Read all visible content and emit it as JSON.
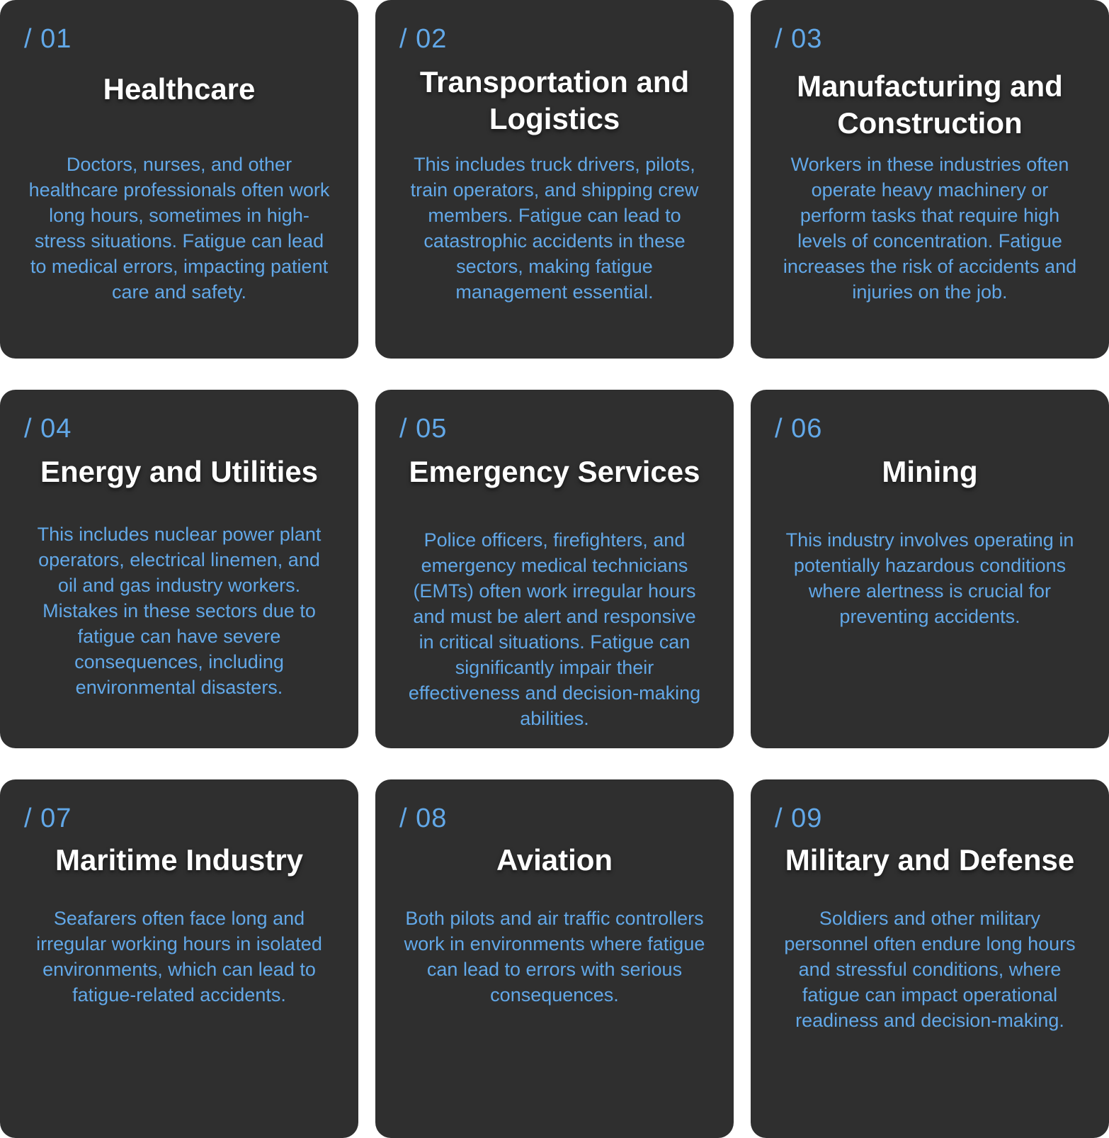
{
  "cards": [
    {
      "number": "/ 01",
      "title": "Healthcare",
      "description": "Doctors, nurses, and other healthcare professionals often work long hours, sometimes in high-stress situations. Fatigue can lead to medical errors, impacting patient care and safety."
    },
    {
      "number": "/ 02",
      "title": "Transportation and Logistics",
      "description": "This includes truck drivers, pilots, train operators, and shipping crew members. Fatigue can lead to catastrophic accidents in these sectors, making fatigue management essential."
    },
    {
      "number": "/ 03",
      "title": "Manufacturing and Construction",
      "description": "Workers in these industries often operate heavy machinery or perform tasks that require high levels of concentration. Fatigue increases the risk of accidents and injuries on the job."
    },
    {
      "number": "/ 04",
      "title": "Energy and Utilities",
      "description": "This includes nuclear power plant operators, electrical linemen, and oil and gas industry workers. Mistakes in these sectors due to fatigue can have severe consequences, including environmental disasters."
    },
    {
      "number": "/ 05",
      "title": "Emergency Services",
      "description": "Police officers, firefighters, and emergency medical technicians (EMTs) often work irregular hours and must be alert and responsive in critical situations. Fatigue can significantly impair their effectiveness and decision-making abilities."
    },
    {
      "number": "/ 06",
      "title": "Mining",
      "description": "This industry involves operating in potentially hazardous conditions where alertness is crucial for preventing accidents."
    },
    {
      "number": "/ 07",
      "title": "Maritime Industry",
      "description": "Seafarers often face long and irregular working hours in isolated environments, which can lead to fatigue-related accidents."
    },
    {
      "number": "/ 08",
      "title": "Aviation",
      "description": "Both pilots and air traffic controllers work in environments where fatigue can lead to errors with serious consequences."
    },
    {
      "number": "/ 09",
      "title": "Military and Defense",
      "description": "Soldiers and other military personnel often endure long hours and stressful conditions, where fatigue can impact operational readiness and decision-making."
    }
  ]
}
